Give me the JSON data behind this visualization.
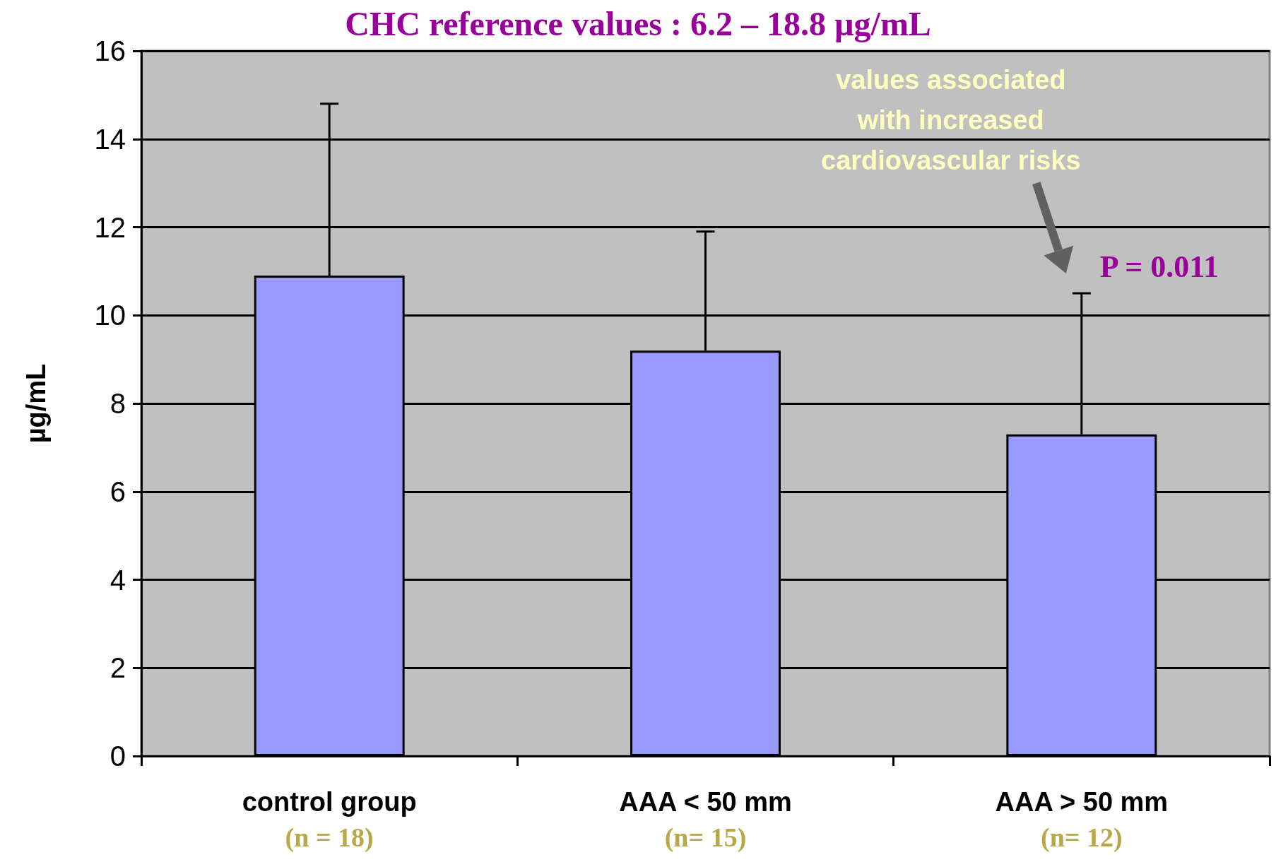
{
  "chart_data": {
    "type": "bar",
    "title": "CHC reference values : 6.2 – 18.8 µg/mL",
    "ylabel": "µg/mL",
    "categories": [
      "control group\n(n = 18)",
      "AAA < 50 mm\n(n= 15)",
      "AAA > 50 mm\n(n= 12)"
    ],
    "values": [
      10.9,
      9.2,
      7.3
    ],
    "errors": [
      [
        10.9,
        14.8
      ],
      [
        9.2,
        11.9
      ],
      [
        7.3,
        10.5
      ]
    ],
    "color": "#9999ff",
    "ylim": [
      0,
      16
    ],
    "yticks": [
      0,
      2,
      4,
      6,
      8,
      10,
      12,
      14,
      16
    ],
    "grid": "y",
    "annotations": [
      "values associated\nwith increased\ncardiovascular risks",
      "P = 0.011"
    ]
  }
}
